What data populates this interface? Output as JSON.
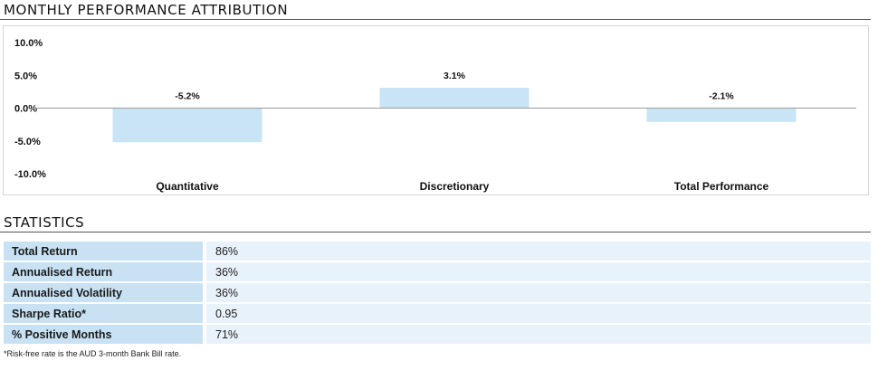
{
  "sections": {
    "attribution_title": "MONTHLY PERFORMANCE ATTRIBUTION",
    "statistics_title": "STATISTICS"
  },
  "chart_data": {
    "type": "bar",
    "title": "MONTHLY PERFORMANCE ATTRIBUTION",
    "categories": [
      "Quantitative",
      "Discretionary",
      "Total Performance"
    ],
    "values": [
      -5.2,
      3.1,
      -2.1
    ],
    "data_labels": [
      "-5.2%",
      "3.1%",
      "-2.1%"
    ],
    "ylim": [
      -10,
      10
    ],
    "yticks": [
      10,
      5,
      0,
      -5,
      -10
    ],
    "ytick_labels": [
      "10.0%",
      "5.0%",
      "0.0%",
      "-5.0%",
      "-10.0%"
    ],
    "grid": false,
    "bar_color": "#c9e4f5",
    "zero_line_color": "#9a9a9a"
  },
  "statistics": {
    "rows": [
      {
        "label": "Total Return",
        "value": "86%"
      },
      {
        "label": "Annualised Return",
        "value": "36%"
      },
      {
        "label": "Annualised Volatility",
        "value": "36%"
      },
      {
        "label": "Sharpe Ratio*",
        "value": "0.95"
      },
      {
        "label": "% Positive Months",
        "value": "71%"
      }
    ],
    "footnote": "*Risk-free rate is the AUD 3-month Bank Bill rate."
  }
}
